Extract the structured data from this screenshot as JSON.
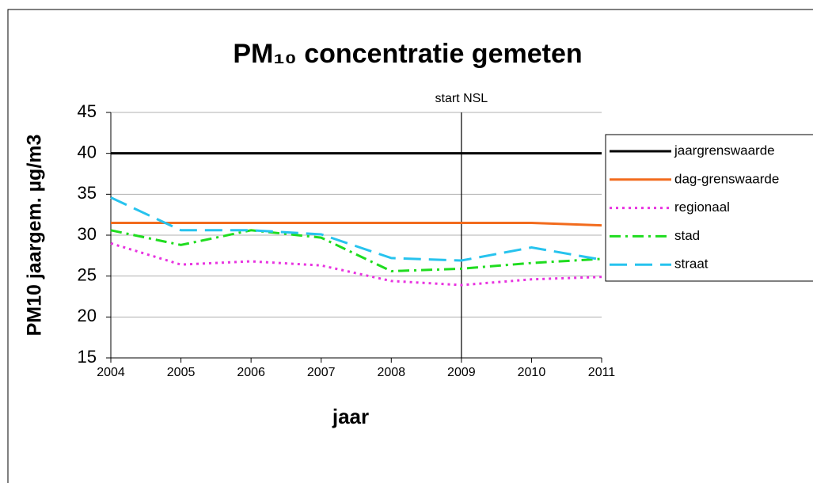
{
  "chart_data": {
    "type": "line",
    "title": "PM₁₀ concentratie gemeten",
    "x_label": "jaar",
    "y_label": "PM10 jaargem. µg/m3",
    "x": [
      2004,
      2005,
      2006,
      2007,
      2008,
      2009,
      2010,
      2011
    ],
    "xlim": [
      2004,
      2011
    ],
    "xticks": [
      2004,
      2005,
      2006,
      2007,
      2008,
      2009,
      2010,
      2011
    ],
    "ylim": [
      15,
      45
    ],
    "yticks": [
      15,
      20,
      25,
      30,
      35,
      40,
      45
    ],
    "grid": true,
    "legend": "right",
    "annotations": [
      {
        "text": "start NSL",
        "x": 2009
      }
    ],
    "series": [
      {
        "name": "jaargrenswaarde",
        "color": "#000000",
        "style": "solid",
        "values": [
          40,
          40,
          40,
          40,
          40,
          40,
          40,
          40
        ]
      },
      {
        "name": "dag-grenswaarde",
        "color": "#f26b1d",
        "style": "solid",
        "values": [
          31.5,
          31.5,
          31.5,
          31.5,
          31.5,
          31.5,
          31.5,
          31.2
        ]
      },
      {
        "name": "regionaal",
        "color": "#e833e0",
        "style": "dotted",
        "values": [
          29,
          26.4,
          26.8,
          26.3,
          24.4,
          23.9,
          24.6,
          24.9
        ]
      },
      {
        "name": "stad",
        "color": "#1fdc1f",
        "style": "dashdot",
        "values": [
          30.6,
          28.8,
          30.6,
          29.7,
          25.6,
          25.9,
          26.6,
          27.1
        ]
      },
      {
        "name": "straat",
        "color": "#27c3ee",
        "style": "dashed",
        "values": [
          34.6,
          30.6,
          30.6,
          30.1,
          27.2,
          26.9,
          28.5,
          27.0
        ]
      }
    ]
  }
}
